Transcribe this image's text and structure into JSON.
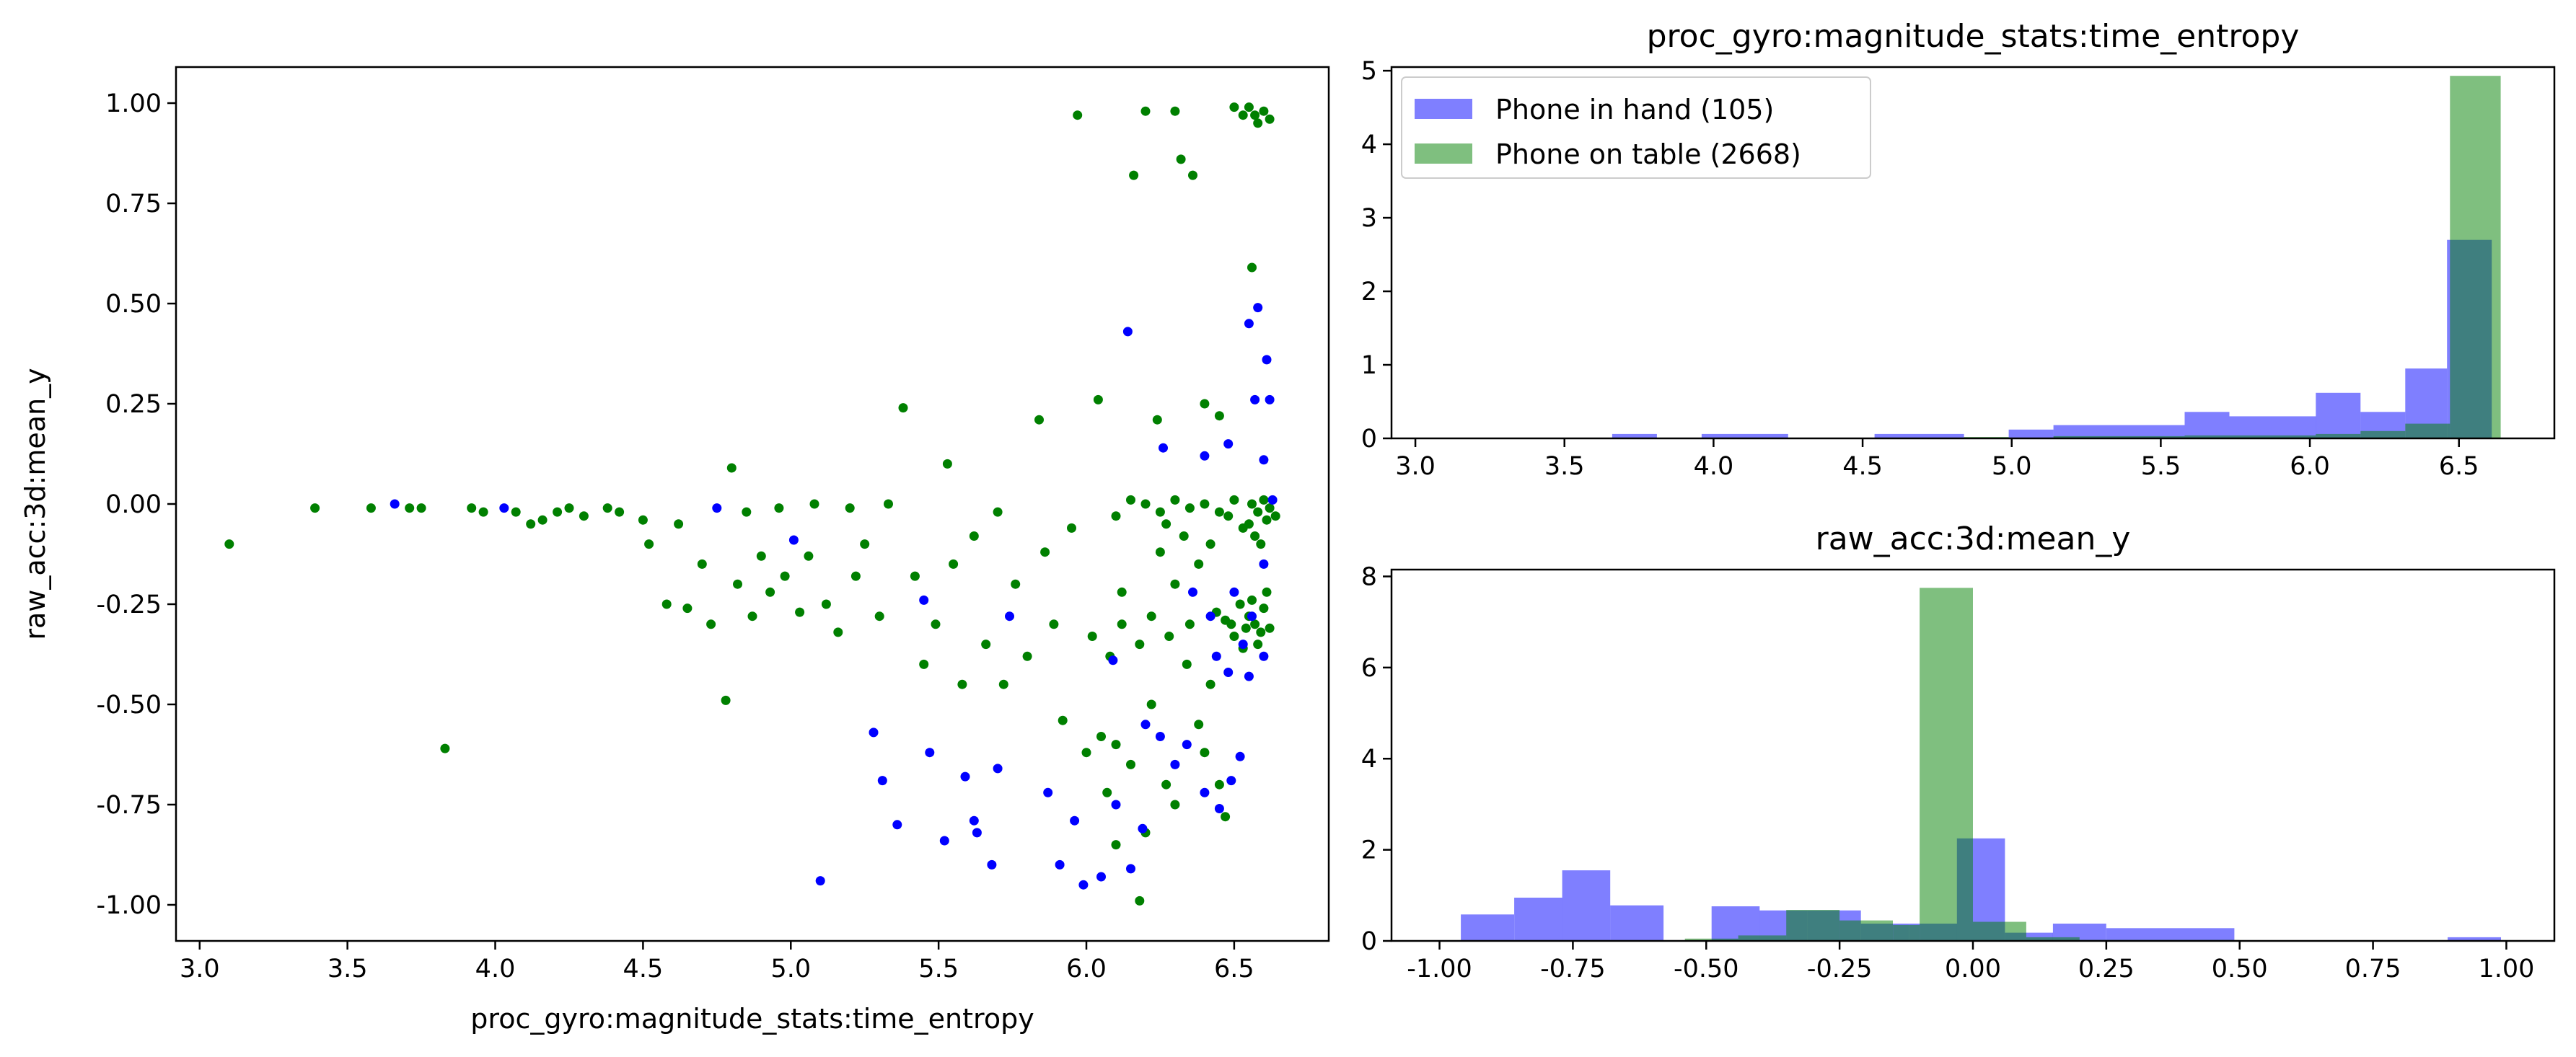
{
  "chart_data": [
    {
      "type": "scatter",
      "title": "",
      "xlabel": "proc_gyro:magnitude_stats:time_entropy",
      "ylabel": "raw_acc:3d:mean_y",
      "xlim": [
        2.92,
        6.82
      ],
      "ylim": [
        -1.09,
        1.09
      ],
      "xticks": [
        "3.0",
        "3.5",
        "4.0",
        "4.5",
        "5.0",
        "5.5",
        "6.0",
        "6.5"
      ],
      "yticks": [
        "1.00",
        "0.75",
        "0.50",
        "0.25",
        "0.00",
        "-0.25",
        "-0.50",
        "-0.75",
        "-1.00"
      ],
      "grid": false,
      "series": [
        {
          "color": "#0000ff",
          "points": [
            [
              3.66,
              0.0
            ],
            [
              4.03,
              -0.01
            ],
            [
              4.75,
              -0.01
            ],
            [
              5.01,
              -0.09
            ],
            [
              5.1,
              -0.94
            ],
            [
              5.28,
              -0.57
            ],
            [
              5.31,
              -0.69
            ],
            [
              5.36,
              -0.8
            ],
            [
              5.45,
              -0.24
            ],
            [
              5.47,
              -0.62
            ],
            [
              5.52,
              -0.84
            ],
            [
              5.59,
              -0.68
            ],
            [
              5.63,
              -0.82
            ],
            [
              5.68,
              -0.9
            ],
            [
              5.62,
              -0.79
            ],
            [
              5.7,
              -0.66
            ],
            [
              5.74,
              -0.28
            ],
            [
              5.87,
              -0.72
            ],
            [
              5.91,
              -0.9
            ],
            [
              5.99,
              -0.95
            ],
            [
              6.05,
              -0.93
            ],
            [
              6.1,
              -0.75
            ],
            [
              6.15,
              -0.91
            ],
            [
              6.19,
              -0.81
            ],
            [
              6.25,
              -0.58
            ],
            [
              6.3,
              -0.65
            ],
            [
              6.4,
              -0.72
            ],
            [
              6.45,
              -0.76
            ],
            [
              6.49,
              -0.69
            ],
            [
              6.52,
              -0.63
            ],
            [
              6.14,
              0.43
            ],
            [
              6.26,
              0.14
            ],
            [
              6.4,
              0.12
            ],
            [
              6.48,
              0.15
            ],
            [
              6.55,
              0.45
            ],
            [
              6.58,
              0.49
            ],
            [
              6.61,
              0.36
            ],
            [
              6.62,
              0.26
            ],
            [
              6.6,
              0.11
            ],
            [
              6.57,
              0.26
            ],
            [
              6.36,
              -0.22
            ],
            [
              6.42,
              -0.28
            ],
            [
              6.48,
              -0.42
            ],
            [
              6.53,
              -0.35
            ],
            [
              6.56,
              -0.28
            ],
            [
              6.6,
              -0.38
            ],
            [
              6.44,
              -0.38
            ],
            [
              6.5,
              -0.22
            ],
            [
              6.55,
              -0.43
            ],
            [
              6.63,
              0.01
            ],
            [
              6.6,
              -0.15
            ],
            [
              6.09,
              -0.39
            ],
            [
              6.2,
              -0.55
            ],
            [
              6.34,
              -0.6
            ],
            [
              5.96,
              -0.79
            ]
          ]
        },
        {
          "color": "#008000",
          "points": [
            [
              3.1,
              -0.1
            ],
            [
              3.39,
              -0.01
            ],
            [
              3.58,
              -0.01
            ],
            [
              3.71,
              -0.01
            ],
            [
              3.75,
              -0.01
            ],
            [
              3.83,
              -0.61
            ],
            [
              3.92,
              -0.01
            ],
            [
              3.96,
              -0.02
            ],
            [
              4.07,
              -0.02
            ],
            [
              4.12,
              -0.05
            ],
            [
              4.16,
              -0.04
            ],
            [
              4.21,
              -0.02
            ],
            [
              4.25,
              -0.01
            ],
            [
              4.3,
              -0.03
            ],
            [
              4.38,
              -0.01
            ],
            [
              4.42,
              -0.02
            ],
            [
              4.5,
              -0.04
            ],
            [
              4.52,
              -0.1
            ],
            [
              4.58,
              -0.25
            ],
            [
              4.62,
              -0.05
            ],
            [
              4.65,
              -0.26
            ],
            [
              4.7,
              -0.15
            ],
            [
              4.73,
              -0.3
            ],
            [
              4.78,
              -0.49
            ],
            [
              4.8,
              0.09
            ],
            [
              4.82,
              -0.2
            ],
            [
              4.85,
              -0.02
            ],
            [
              4.87,
              -0.28
            ],
            [
              4.9,
              -0.13
            ],
            [
              4.93,
              -0.22
            ],
            [
              4.96,
              -0.01
            ],
            [
              4.98,
              -0.18
            ],
            [
              5.03,
              -0.27
            ],
            [
              5.06,
              -0.13
            ],
            [
              5.08,
              0.0
            ],
            [
              5.12,
              -0.25
            ],
            [
              5.16,
              -0.32
            ],
            [
              5.2,
              -0.01
            ],
            [
              5.22,
              -0.18
            ],
            [
              5.25,
              -0.1
            ],
            [
              5.3,
              -0.28
            ],
            [
              5.33,
              0.0
            ],
            [
              5.38,
              0.24
            ],
            [
              5.42,
              -0.18
            ],
            [
              5.45,
              -0.4
            ],
            [
              5.49,
              -0.3
            ],
            [
              5.53,
              0.1
            ],
            [
              5.55,
              -0.15
            ],
            [
              5.58,
              -0.45
            ],
            [
              5.62,
              -0.08
            ],
            [
              5.66,
              -0.35
            ],
            [
              5.7,
              -0.02
            ],
            [
              5.72,
              -0.45
            ],
            [
              5.76,
              -0.2
            ],
            [
              5.8,
              -0.38
            ],
            [
              5.84,
              0.21
            ],
            [
              5.86,
              -0.12
            ],
            [
              5.89,
              -0.3
            ],
            [
              5.92,
              -0.54
            ],
            [
              5.95,
              -0.06
            ],
            [
              5.97,
              0.97
            ],
            [
              6.0,
              -0.62
            ],
            [
              6.02,
              -0.33
            ],
            [
              6.04,
              0.26
            ],
            [
              6.07,
              -0.72
            ],
            [
              6.1,
              -0.6
            ],
            [
              6.12,
              -0.22
            ],
            [
              6.16,
              0.82
            ],
            [
              6.18,
              -0.99
            ],
            [
              6.2,
              0.98
            ],
            [
              6.22,
              -0.5
            ],
            [
              6.24,
              0.21
            ],
            [
              6.27,
              -0.7
            ],
            [
              6.3,
              0.98
            ],
            [
              6.32,
              0.86
            ],
            [
              6.34,
              -0.4
            ],
            [
              6.36,
              0.82
            ],
            [
              6.38,
              -0.55
            ],
            [
              6.4,
              0.25
            ],
            [
              6.42,
              -0.45
            ],
            [
              6.45,
              0.22
            ],
            [
              6.47,
              -0.78
            ],
            [
              6.5,
              0.99
            ],
            [
              6.53,
              0.97
            ],
            [
              6.55,
              0.99
            ],
            [
              6.57,
              0.97
            ],
            [
              6.58,
              0.95
            ],
            [
              6.6,
              0.98
            ],
            [
              6.62,
              0.96
            ],
            [
              6.56,
              0.59
            ],
            [
              6.56,
              0.0
            ],
            [
              6.58,
              -0.02
            ],
            [
              6.6,
              0.01
            ],
            [
              6.62,
              -0.01
            ],
            [
              6.64,
              -0.03
            ],
            [
              6.5,
              0.01
            ],
            [
              6.45,
              -0.02
            ],
            [
              6.4,
              0.0
            ],
            [
              6.35,
              -0.01
            ],
            [
              6.3,
              0.01
            ],
            [
              6.25,
              -0.02
            ],
            [
              6.2,
              0.0
            ],
            [
              6.15,
              0.01
            ],
            [
              6.1,
              -0.03
            ],
            [
              6.55,
              -0.05
            ],
            [
              6.57,
              -0.08
            ],
            [
              6.59,
              -0.1
            ],
            [
              6.61,
              -0.04
            ],
            [
              6.53,
              -0.06
            ],
            [
              6.48,
              -0.03
            ],
            [
              6.55,
              -0.28
            ],
            [
              6.57,
              -0.3
            ],
            [
              6.59,
              -0.32
            ],
            [
              6.6,
              -0.26
            ],
            [
              6.62,
              -0.31
            ],
            [
              6.52,
              -0.25
            ],
            [
              6.5,
              -0.33
            ],
            [
              6.47,
              -0.29
            ],
            [
              6.44,
              -0.27
            ],
            [
              6.58,
              -0.35
            ],
            [
              6.56,
              -0.24
            ],
            [
              6.54,
              -0.31
            ],
            [
              6.61,
              -0.22
            ],
            [
              6.53,
              -0.36
            ],
            [
              6.49,
              -0.3
            ],
            [
              6.35,
              -0.3
            ],
            [
              6.28,
              -0.33
            ],
            [
              6.22,
              -0.28
            ],
            [
              6.18,
              -0.35
            ],
            [
              6.12,
              -0.3
            ],
            [
              6.08,
              -0.38
            ],
            [
              6.25,
              -0.12
            ],
            [
              6.3,
              -0.2
            ],
            [
              6.38,
              -0.15
            ],
            [
              6.42,
              -0.1
            ],
            [
              6.33,
              -0.08
            ],
            [
              6.27,
              -0.05
            ],
            [
              6.4,
              -0.62
            ],
            [
              6.45,
              -0.7
            ],
            [
              6.3,
              -0.75
            ],
            [
              6.15,
              -0.65
            ],
            [
              6.05,
              -0.58
            ],
            [
              6.2,
              -0.82
            ],
            [
              6.1,
              -0.85
            ]
          ]
        }
      ]
    },
    {
      "type": "bar",
      "title": "proc_gyro:magnitude_stats:time_entropy",
      "xlim": [
        2.92,
        6.82
      ],
      "ylim": [
        0,
        5.05
      ],
      "xticks": [
        "3.0",
        "3.5",
        "4.0",
        "4.5",
        "5.0",
        "5.5",
        "6.0",
        "6.5"
      ],
      "yticks": [
        "0",
        "1",
        "2",
        "3",
        "4",
        "5"
      ],
      "legend_position": "upper left",
      "series": [
        {
          "name": "Phone in hand (105)",
          "color": "#0000ff",
          "opacity": 0.5,
          "bins": [
            [
              3.66,
              3.81,
              0.06
            ],
            [
              3.96,
              4.25,
              0.06
            ],
            [
              4.54,
              4.84,
              0.06
            ],
            [
              4.99,
              5.14,
              0.12
            ],
            [
              5.14,
              5.58,
              0.18
            ],
            [
              5.58,
              5.73,
              0.36
            ],
            [
              5.73,
              6.02,
              0.3
            ],
            [
              6.02,
              6.17,
              0.62
            ],
            [
              6.17,
              6.32,
              0.36
            ],
            [
              6.32,
              6.46,
              0.95
            ],
            [
              6.46,
              6.61,
              2.7
            ]
          ]
        },
        {
          "name": "Phone on table (2668)",
          "color": "#008000",
          "opacity": 0.5,
          "bins": [
            [
              4.84,
              4.99,
              0.02
            ],
            [
              5.14,
              5.58,
              0.03
            ],
            [
              5.58,
              6.02,
              0.04
            ],
            [
              6.02,
              6.17,
              0.06
            ],
            [
              6.17,
              6.32,
              0.1
            ],
            [
              6.32,
              6.47,
              0.2
            ],
            [
              6.47,
              6.64,
              4.93
            ]
          ]
        }
      ]
    },
    {
      "type": "bar",
      "title": "raw_acc:3d:mean_y",
      "xlim": [
        -1.09,
        1.09
      ],
      "ylim": [
        0,
        8.15
      ],
      "xticks": [
        "-1.00",
        "-0.75",
        "-0.50",
        "-0.25",
        "0.00",
        "0.25",
        "0.50",
        "0.75",
        "1.00"
      ],
      "yticks": [
        "0",
        "2",
        "4",
        "6",
        "8"
      ],
      "series": [
        {
          "name": "Phone in hand (105)",
          "color": "#0000ff",
          "opacity": 0.5,
          "bins": [
            [
              -0.96,
              -0.86,
              0.58
            ],
            [
              -0.86,
              -0.77,
              0.95
            ],
            [
              -0.77,
              -0.68,
              1.55
            ],
            [
              -0.68,
              -0.58,
              0.78
            ],
            [
              -0.49,
              -0.4,
              0.76
            ],
            [
              -0.4,
              -0.31,
              0.67
            ],
            [
              -0.31,
              -0.21,
              0.67
            ],
            [
              -0.21,
              -0.12,
              0.38
            ],
            [
              -0.12,
              -0.03,
              0.38
            ],
            [
              -0.03,
              0.06,
              2.25
            ],
            [
              0.06,
              0.15,
              0.18
            ],
            [
              0.15,
              0.25,
              0.38
            ],
            [
              0.25,
              0.49,
              0.28
            ],
            [
              0.89,
              0.99,
              0.08
            ]
          ]
        },
        {
          "name": "Phone on table (2668)",
          "color": "#008000",
          "opacity": 0.5,
          "bins": [
            [
              -0.54,
              -0.44,
              0.05
            ],
            [
              -0.44,
              -0.35,
              0.12
            ],
            [
              -0.35,
              -0.25,
              0.68
            ],
            [
              -0.25,
              -0.15,
              0.45
            ],
            [
              -0.15,
              -0.1,
              0.35
            ],
            [
              -0.1,
              0.0,
              7.75
            ],
            [
              0.0,
              0.1,
              0.42
            ],
            [
              0.1,
              0.2,
              0.08
            ],
            [
              0.2,
              0.5,
              0.02
            ]
          ]
        }
      ]
    }
  ]
}
